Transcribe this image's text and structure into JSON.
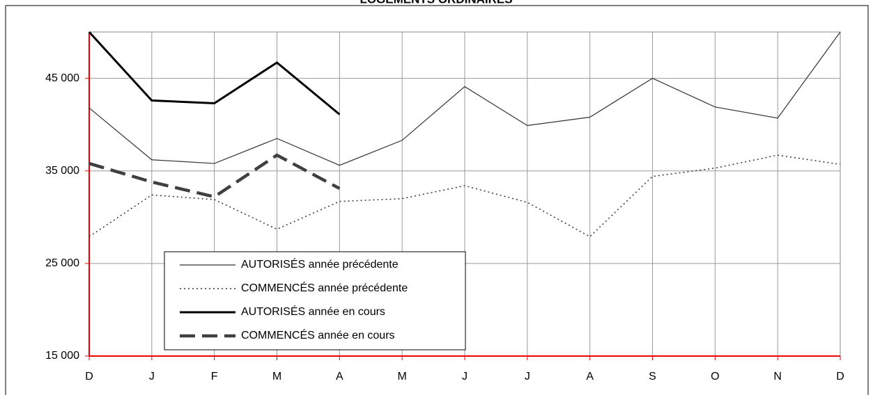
{
  "chart_data": {
    "type": "line",
    "title": "LOGEMENTS ORDINAIRES",
    "categories": [
      "D",
      "J",
      "F",
      "M",
      "A",
      "M",
      "J",
      "J",
      "A",
      "S",
      "O",
      "N",
      "D"
    ],
    "series": [
      {
        "name": "AUTORISÉS année précédente",
        "color": "#333333",
        "style": "thin",
        "values": [
          41800,
          36200,
          35800,
          38500,
          35600,
          38300,
          44100,
          39900,
          40800,
          45000,
          41900,
          40700,
          50000
        ]
      },
      {
        "name": "COMMENCÉS année précédente",
        "color": "#333333",
        "style": "dotted",
        "values": [
          27900,
          32400,
          31900,
          28700,
          31700,
          32000,
          33400,
          31600,
          27900,
          34400,
          35300,
          36700,
          35700
        ]
      },
      {
        "name": "AUTORISÉS année en cours",
        "color": "#000000",
        "style": "thick",
        "values": [
          50000,
          42600,
          42300,
          46700,
          41100,
          null,
          null,
          null,
          null,
          null,
          null,
          null,
          null
        ]
      },
      {
        "name": "COMMENCÉS année en cours",
        "color": "#404040",
        "style": "dashed",
        "values": [
          35800,
          33800,
          32200,
          36700,
          33100,
          null,
          null,
          null,
          null,
          null,
          null,
          null,
          null
        ]
      }
    ],
    "ylim": [
      15000,
      50000
    ],
    "yticks": [
      {
        "value": 15000,
        "label": "15 000"
      },
      {
        "value": 25000,
        "label": "25 000"
      },
      {
        "value": 35000,
        "label": "35 000"
      },
      {
        "value": 45000,
        "label": "45 000"
      }
    ],
    "grid": true
  }
}
